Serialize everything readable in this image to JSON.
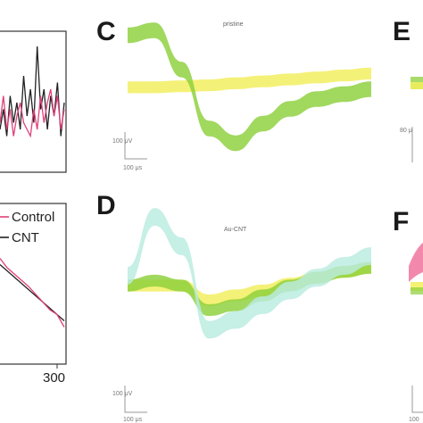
{
  "colors": {
    "control": "#e0407a",
    "cnt": "#222222",
    "yellow": "#f2ee5a",
    "green": "#8ccf3a",
    "cyan": "#b9ecdf",
    "pink": "#f06a98"
  },
  "panels": {
    "C": {
      "letter": "C",
      "condition": "pristine",
      "scale_v": "100 μV",
      "scale_t": "100 μs"
    },
    "D": {
      "letter": "D",
      "condition": "Au-CNT",
      "scale_v": "100 μV",
      "scale_t": "100 μs"
    },
    "E": {
      "letter": "E",
      "scale_v": "80 μ"
    },
    "F": {
      "letter": "F",
      "scale_t": "100"
    }
  },
  "chart_data": [
    {
      "type": "line",
      "panel": "top-left (cropped)",
      "series": [
        {
          "name": "CNT",
          "color": "#222222",
          "values": [
            0.3,
            0.45,
            0.25,
            0.55,
            0.35,
            0.5,
            0.3,
            0.7,
            0.4,
            0.6,
            0.35,
            0.92,
            0.45,
            0.6,
            0.3,
            0.55,
            0.4,
            0.65,
            0.25,
            0.5
          ]
        },
        {
          "name": "Control",
          "color": "#e0407a",
          "values": [
            0.35,
            0.55,
            0.3,
            0.45,
            0.25,
            0.4,
            0.5,
            0.35,
            0.3,
            0.25,
            0.45,
            0.3,
            0.55,
            0.35,
            0.5,
            0.6,
            0.4,
            0.55,
            0.3,
            0.45
          ]
        }
      ]
    },
    {
      "type": "line",
      "panel": "bottom-left (cropped)",
      "xtick_labels": [
        "300"
      ],
      "legend": [
        "Control",
        "CNT"
      ],
      "legend_position": "top-right",
      "series": [
        {
          "name": "CNT",
          "color": "#222222",
          "values": [
            0.62,
            0.58,
            0.54,
            0.5,
            0.46,
            0.42,
            0.38,
            0.34,
            0.3,
            0.26
          ]
        },
        {
          "name": "Control",
          "color": "#e0407a",
          "values": [
            0.66,
            0.6,
            0.56,
            0.52,
            0.48,
            0.43,
            0.38,
            0.33,
            0.3,
            0.22
          ]
        }
      ]
    },
    {
      "type": "area",
      "panel": "C",
      "title": "pristine",
      "bands": [
        {
          "color": "#f2ee5a",
          "center": [
            0.02,
            0.02,
            0.03,
            0.04,
            0.06,
            0.08,
            0.1,
            0.12,
            0.14,
            0.16
          ],
          "halfwidth": 0.06
        },
        {
          "color": "#8ccf3a",
          "center": [
            0.55,
            0.6,
            0.2,
            -0.4,
            -0.55,
            -0.35,
            -0.2,
            -0.1,
            -0.05,
            0.0
          ],
          "halfwidth": 0.08
        }
      ]
    },
    {
      "type": "area",
      "panel": "D",
      "title": "Au-CNT",
      "bands": [
        {
          "color": "#f2ee5a",
          "center": [
            0.0,
            0.0,
            0.0,
            -0.15,
            -0.1,
            -0.05,
            0.02,
            0.08,
            0.14,
            0.18
          ],
          "halfwidth": 0.06
        },
        {
          "color": "#8ccf3a",
          "center": [
            0.0,
            0.05,
            0.0,
            -0.25,
            -0.2,
            -0.1,
            0.0,
            0.08,
            0.14,
            0.18
          ],
          "halfwidth": 0.06
        },
        {
          "color": "#b9ecdf",
          "center": [
            0.1,
            0.7,
            0.4,
            -0.45,
            -0.35,
            -0.2,
            -0.05,
            0.08,
            0.2,
            0.3
          ],
          "halfwidth": 0.09
        }
      ]
    }
  ]
}
